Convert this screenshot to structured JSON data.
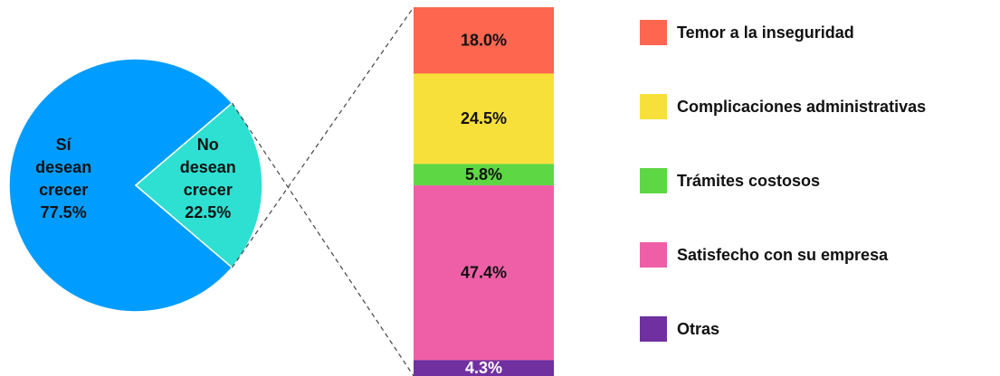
{
  "chart_data": [
    {
      "type": "pie",
      "categories": [
        "Sí desean crecer",
        "No desean crecer"
      ],
      "values": [
        77.5,
        22.5
      ],
      "value_labels": [
        "77.5%",
        "22.5%"
      ],
      "colors": [
        "#009cff",
        "#2de0d2"
      ]
    },
    {
      "type": "stacked-bar",
      "series": [
        {
          "name": "Temor a la inseguridad",
          "color": "#fe6650",
          "values": [
            18.0
          ],
          "value_labels": [
            "18.0%"
          ]
        },
        {
          "name": "Complicaciones administrativas",
          "color": "#f8e03b",
          "values": [
            24.5
          ],
          "value_labels": [
            "24.5%"
          ]
        },
        {
          "name": "Trámites costosos",
          "color": "#5ed744",
          "values": [
            5.8
          ],
          "value_labels": [
            "5.8%"
          ]
        },
        {
          "name": "Satisfecho con su empresa",
          "color": "#ee5fa7",
          "values": [
            47.4
          ],
          "value_labels": [
            "47.4%"
          ]
        },
        {
          "name": "Otras",
          "color": "#7030a0",
          "values": [
            4.3
          ],
          "value_labels": [
            "4.3%"
          ]
        }
      ]
    }
  ]
}
